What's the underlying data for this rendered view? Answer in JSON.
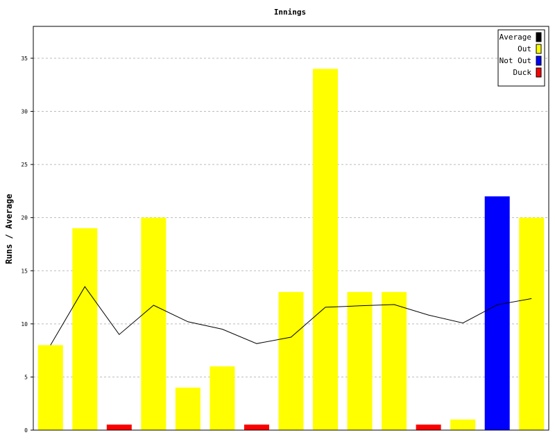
{
  "chart_data": {
    "type": "bar",
    "title": "Innings",
    "xlabel": "",
    "ylabel": "Runs / Average",
    "ylim": [
      0,
      38
    ],
    "yticks": [
      0,
      5,
      10,
      15,
      20,
      25,
      30,
      35
    ],
    "grid": true,
    "legend_position": "top-right",
    "legend": [
      {
        "label": "Average",
        "color": "#000000"
      },
      {
        "label": "Out",
        "color": "#ffff00"
      },
      {
        "label": "Not Out",
        "color": "#0000ff"
      },
      {
        "label": "Duck",
        "color": "#ff0000"
      }
    ],
    "innings": [
      {
        "runs": 8,
        "status": "Out"
      },
      {
        "runs": 19,
        "status": "Out"
      },
      {
        "runs": 0,
        "status": "Duck"
      },
      {
        "runs": 20,
        "status": "Out"
      },
      {
        "runs": 4,
        "status": "Out"
      },
      {
        "runs": 6,
        "status": "Out"
      },
      {
        "runs": 0,
        "status": "Duck"
      },
      {
        "runs": 13,
        "status": "Out"
      },
      {
        "runs": 34,
        "status": "Out"
      },
      {
        "runs": 13,
        "status": "Out"
      },
      {
        "runs": 13,
        "status": "Out"
      },
      {
        "runs": 0,
        "status": "Duck"
      },
      {
        "runs": 1,
        "status": "Out"
      },
      {
        "runs": 22,
        "status": "Not Out"
      },
      {
        "runs": 20,
        "status": "Out"
      }
    ],
    "average": [
      8.0,
      13.5,
      9.0,
      11.75,
      10.2,
      9.5,
      8.14,
      8.75,
      11.56,
      11.7,
      11.82,
      10.83,
      10.08,
      11.8,
      12.38
    ]
  }
}
